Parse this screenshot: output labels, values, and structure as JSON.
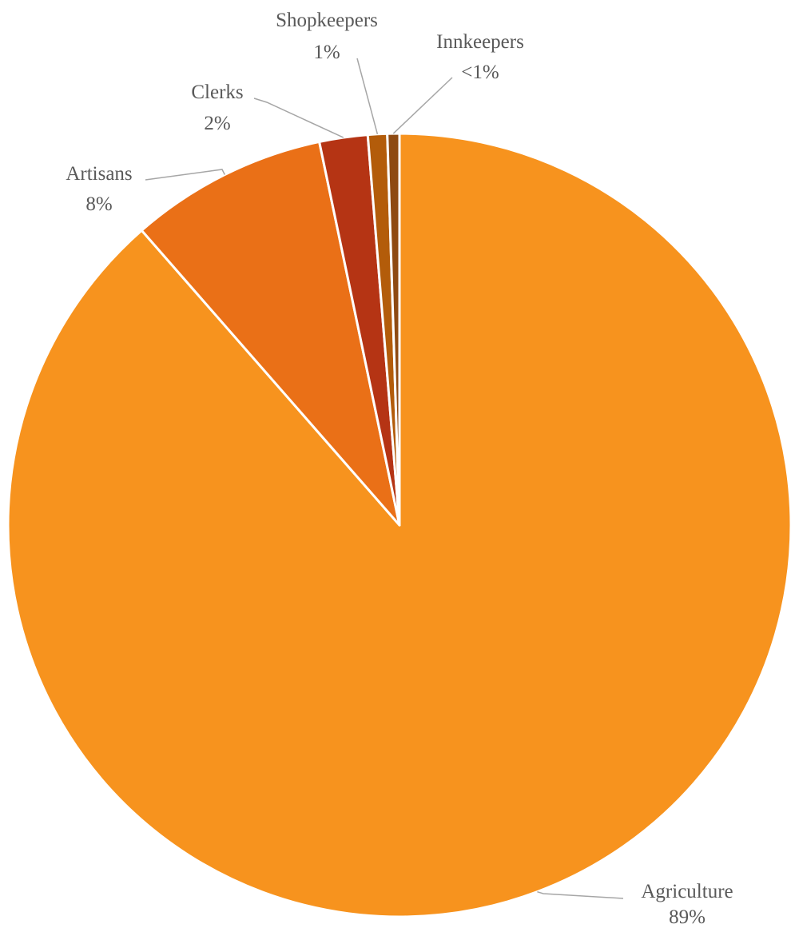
{
  "chart_data": {
    "type": "pie",
    "title": "",
    "start_angle_deg": 0,
    "direction": "clockwise",
    "legend": "none",
    "slices": [
      {
        "name": "Agriculture",
        "value": 89.0,
        "label": "89%",
        "color": "#F7931E"
      },
      {
        "name": "Artisans",
        "value": 8.2,
        "label": "8%",
        "color": "#EA7017"
      },
      {
        "name": "Clerks",
        "value": 2.0,
        "label": "2%",
        "color": "#B53414"
      },
      {
        "name": "Shopkeepers",
        "value": 0.8,
        "label": "1%",
        "color": "#B35C0A"
      },
      {
        "name": "Innkeepers",
        "value": 0.5,
        "label": "<1%",
        "color": "#8E4A12"
      }
    ]
  }
}
